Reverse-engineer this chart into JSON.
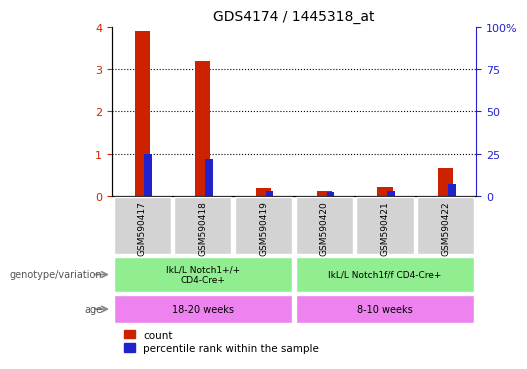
{
  "title": "GDS4174 / 1445318_at",
  "samples": [
    "GSM590417",
    "GSM590418",
    "GSM590419",
    "GSM590420",
    "GSM590421",
    "GSM590422"
  ],
  "red_values": [
    3.9,
    3.2,
    0.18,
    0.12,
    0.22,
    0.65
  ],
  "blue_values_pct": [
    25,
    22,
    3,
    2,
    3,
    7
  ],
  "ylim_left": [
    0,
    4
  ],
  "ylim_right": [
    0,
    100
  ],
  "yticks_left": [
    0,
    1,
    2,
    3,
    4
  ],
  "yticks_right": [
    0,
    25,
    50,
    75,
    100
  ],
  "ytick_labels_right": [
    "0",
    "25",
    "50",
    "75",
    "100%"
  ],
  "bar_width": 0.25,
  "red_color": "#cc2200",
  "blue_color": "#2222cc",
  "sample_bg_color": "#d3d3d3",
  "genotype_bg_color": "#90ee90",
  "age_bg_color": "#ee82ee",
  "genotype_labels": [
    "IkL/L Notch1+/+\nCD4-Cre+",
    "IkL/L Notch1f/f CD4-Cre+"
  ],
  "age_labels": [
    "18-20 weeks",
    "8-10 weeks"
  ],
  "left_label_genotype": "genotype/variation",
  "left_label_age": "age",
  "legend_count": "count",
  "legend_pct": "percentile rank within the sample"
}
